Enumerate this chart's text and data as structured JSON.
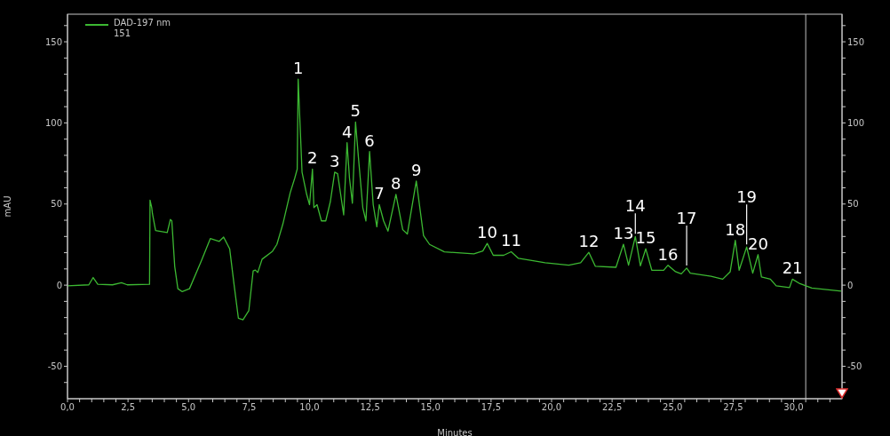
{
  "chart_data": {
    "type": "line",
    "xlabel": "Minutes",
    "ylabel": "mAU",
    "legend": "top left",
    "xlim": [
      0,
      32
    ],
    "ylim": [
      -70,
      167
    ],
    "y2lim": [
      -70,
      167
    ],
    "xticks": [
      {
        "value": 0,
        "label": "0,0"
      },
      {
        "value": 0.5,
        "label": null
      },
      {
        "value": 1,
        "label": null
      },
      {
        "value": 1.5,
        "label": null
      },
      {
        "value": 2,
        "label": null
      },
      {
        "value": 2.5,
        "label": "2,5"
      },
      {
        "value": 3,
        "label": null
      },
      {
        "value": 3.5,
        "label": null
      },
      {
        "value": 4,
        "label": null
      },
      {
        "value": 4.5,
        "label": null
      },
      {
        "value": 5,
        "label": "5,0"
      },
      {
        "value": 5.5,
        "label": null
      },
      {
        "value": 6,
        "label": null
      },
      {
        "value": 6.5,
        "label": null
      },
      {
        "value": 7,
        "label": null
      },
      {
        "value": 7.5,
        "label": "7,5"
      },
      {
        "value": 8,
        "label": null
      },
      {
        "value": 8.5,
        "label": null
      },
      {
        "value": 9,
        "label": null
      },
      {
        "value": 9.5,
        "label": null
      },
      {
        "value": 10,
        "label": "10,0"
      },
      {
        "value": 10.5,
        "label": null
      },
      {
        "value": 11,
        "label": null
      },
      {
        "value": 11.5,
        "label": null
      },
      {
        "value": 12,
        "label": null
      },
      {
        "value": 12.5,
        "label": "12,5"
      },
      {
        "value": 13,
        "label": null
      },
      {
        "value": 13.5,
        "label": null
      },
      {
        "value": 14,
        "label": null
      },
      {
        "value": 14.5,
        "label": null
      },
      {
        "value": 15,
        "label": "15,0"
      },
      {
        "value": 15.5,
        "label": null
      },
      {
        "value": 16,
        "label": null
      },
      {
        "value": 16.5,
        "label": null
      },
      {
        "value": 17,
        "label": null
      },
      {
        "value": 17.5,
        "label": "17,5"
      },
      {
        "value": 18,
        "label": null
      },
      {
        "value": 18.5,
        "label": null
      },
      {
        "value": 19,
        "label": null
      },
      {
        "value": 19.5,
        "label": null
      },
      {
        "value": 20,
        "label": "20,0"
      },
      {
        "value": 20.5,
        "label": null
      },
      {
        "value": 21,
        "label": null
      },
      {
        "value": 21.5,
        "label": null
      },
      {
        "value": 22,
        "label": null
      },
      {
        "value": 22.5,
        "label": "22,5"
      },
      {
        "value": 23,
        "label": null
      },
      {
        "value": 23.5,
        "label": null
      },
      {
        "value": 24,
        "label": null
      },
      {
        "value": 24.5,
        "label": null
      },
      {
        "value": 25,
        "label": "25,0"
      },
      {
        "value": 25.5,
        "label": null
      },
      {
        "value": 26,
        "label": null
      },
      {
        "value": 26.5,
        "label": null
      },
      {
        "value": 27,
        "label": null
      },
      {
        "value": 27.5,
        "label": "27,5"
      },
      {
        "value": 28,
        "label": null
      },
      {
        "value": 28.5,
        "label": null
      },
      {
        "value": 29,
        "label": null
      },
      {
        "value": 29.5,
        "label": null
      },
      {
        "value": 30,
        "label": "30,0"
      },
      {
        "value": 30.5,
        "label": null
      },
      {
        "value": 31,
        "label": null
      },
      {
        "value": 31.5,
        "label": null
      }
    ],
    "yticks": [
      {
        "value": -60,
        "label": null
      },
      -50,
      {
        "value": -40,
        "label": null
      },
      {
        "value": -30,
        "label": null
      },
      {
        "value": -20,
        "label": null
      },
      {
        "value": -10,
        "label": null
      },
      0,
      {
        "value": 10,
        "label": null
      },
      {
        "value": 20,
        "label": null
      },
      {
        "value": 30,
        "label": null
      },
      {
        "value": 40,
        "label": null
      },
      50,
      {
        "value": 60,
        "label": null
      },
      {
        "value": 70,
        "label": null
      },
      {
        "value": 80,
        "label": null
      },
      {
        "value": 90,
        "label": null
      },
      100,
      {
        "value": 110,
        "label": null
      },
      {
        "value": 120,
        "label": null
      },
      {
        "value": 130,
        "label": null
      },
      {
        "value": 140,
        "label": null
      },
      150,
      {
        "value": 160,
        "label": null
      }
    ],
    "y2ticks": [
      {
        "value": -60,
        "label": null
      },
      -50,
      {
        "value": -40,
        "label": null
      },
      {
        "value": -30,
        "label": null
      },
      {
        "value": -20,
        "label": null
      },
      {
        "value": -10,
        "label": null
      },
      0,
      {
        "value": 10,
        "label": null
      },
      {
        "value": 20,
        "label": null
      },
      {
        "value": 30,
        "label": null
      },
      {
        "value": 40,
        "label": null
      },
      50,
      {
        "value": 60,
        "label": null
      },
      {
        "value": 70,
        "label": null
      },
      {
        "value": 80,
        "label": null
      },
      {
        "value": 90,
        "label": null
      },
      100,
      {
        "value": 110,
        "label": null
      },
      {
        "value": 120,
        "label": null
      },
      {
        "value": 130,
        "label": null
      },
      {
        "value": 140,
        "label": null
      },
      150,
      {
        "value": 160,
        "label": null
      }
    ],
    "ref_lines": [
      {
        "axis": "x",
        "value": 30.5,
        "label": null,
        "color": "#c0c0c0"
      }
    ],
    "series": [
      {
        "name": "DAD-197 nm\n151",
        "color": "#3cb832",
        "x": [
          0,
          0.88,
          1.06,
          1.25,
          1.86,
          2.23,
          2.47,
          3.39,
          3.41,
          3.48,
          3.51,
          3.64,
          4.12,
          4.25,
          4.31,
          4.43,
          4.56,
          4.74,
          5.04,
          5.53,
          5.9,
          6.27,
          6.45,
          6.7,
          6.88,
          7.06,
          7.25,
          7.49,
          7.67,
          7.76,
          7.86,
          8.04,
          8.47,
          8.65,
          8.9,
          9.2,
          9.39,
          9.49,
          9.53,
          9.6,
          9.69,
          9.88,
          10.0,
          10.12,
          10.18,
          10.31,
          10.49,
          10.67,
          10.86,
          11.04,
          11.16,
          11.41,
          11.55,
          11.65,
          11.77,
          11.9,
          12.02,
          12.2,
          12.33,
          12.48,
          12.63,
          12.78,
          12.88,
          13.06,
          13.24,
          13.57,
          13.85,
          14.04,
          14.41,
          14.71,
          14.96,
          15.57,
          16.79,
          17.16,
          17.34,
          17.59,
          18.02,
          18.33,
          18.63,
          19.24,
          19.73,
          20.71,
          21.2,
          21.54,
          21.81,
          22.66,
          22.97,
          23.18,
          23.46,
          23.67,
          23.89,
          24.14,
          24.63,
          24.81,
          25.12,
          25.36,
          25.58,
          25.73,
          26.59,
          27.07,
          27.38,
          27.59,
          27.75,
          28.06,
          28.31,
          28.53,
          28.67,
          29.04,
          29.28,
          29.83,
          29.95,
          30.26,
          30.75,
          31.97
        ],
        "values": [
          -0.4,
          0.2,
          4.7,
          0.5,
          0.2,
          1.5,
          0.2,
          0.5,
          52.4,
          47.8,
          44,
          33.6,
          32.4,
          40.5,
          39.6,
          11.5,
          -2.2,
          -4,
          -2.2,
          15,
          28.7,
          27,
          29.6,
          22.4,
          0.5,
          -20.4,
          -21.3,
          -15.8,
          8.7,
          9.3,
          7.8,
          16,
          20.9,
          25.1,
          37.8,
          56.9,
          66,
          71.5,
          127,
          102,
          69.6,
          56,
          49.6,
          71.5,
          47.8,
          49.6,
          39.6,
          39.6,
          51.5,
          69.6,
          68.7,
          43.3,
          87.8,
          66,
          50.5,
          100.5,
          78.7,
          47.8,
          39.6,
          82.4,
          49.6,
          36,
          49.6,
          39.6,
          33.3,
          56,
          34.2,
          31.5,
          64.2,
          30.5,
          25.1,
          20.5,
          19.3,
          21.1,
          25.7,
          18.4,
          18.4,
          20.6,
          16.5,
          15.1,
          13.8,
          12.3,
          13.8,
          20.2,
          11.6,
          11,
          25.2,
          12.3,
          30,
          11.9,
          22.4,
          9.2,
          9.2,
          12.3,
          8.3,
          7,
          10.5,
          7.4,
          5.5,
          3.7,
          8.3,
          27.6,
          9.2,
          23.5,
          7.4,
          18.8,
          5.1,
          3.7,
          -0.4,
          -1.5,
          3.7,
          0.9,
          -1.8,
          -3.7
        ]
      }
    ],
    "annotations": [
      {
        "text": "1",
        "x": 9.53,
        "y": 127
      },
      {
        "text": "2",
        "x": 10.12,
        "y": 71.5
      },
      {
        "text": "3",
        "x": 11.04,
        "y": 69.6
      },
      {
        "text": "4",
        "x": 11.55,
        "y": 87.8
      },
      {
        "text": "5",
        "x": 11.9,
        "y": 100.5
      },
      {
        "text": "6",
        "x": 12.48,
        "y": 82.4
      },
      {
        "text": "7",
        "x": 12.88,
        "y": 49.6
      },
      {
        "text": "8",
        "x": 13.57,
        "y": 56
      },
      {
        "text": "9",
        "x": 14.41,
        "y": 64.2
      },
      {
        "text": "10",
        "x": 17.34,
        "y": 25.7
      },
      {
        "text": "11",
        "x": 18.33,
        "y": 20.6
      },
      {
        "text": "12",
        "x": 21.54,
        "y": 20.2
      },
      {
        "text": "13",
        "x": 22.97,
        "y": 25.2
      },
      {
        "text": "14",
        "x": 23.46,
        "y": 30
      },
      {
        "text": "15",
        "x": 23.89,
        "y": 22.4
      },
      {
        "text": "16",
        "x": 24.81,
        "y": 12.3
      },
      {
        "text": "17",
        "x": 25.58,
        "y": 10.5
      },
      {
        "text": "18",
        "x": 27.59,
        "y": 27.6
      },
      {
        "text": "19",
        "x": 28.06,
        "y": 23.5
      },
      {
        "text": "20",
        "x": 28.53,
        "y": 18.8
      },
      {
        "text": "21",
        "x": 29.95,
        "y": 3.7
      }
    ]
  }
}
